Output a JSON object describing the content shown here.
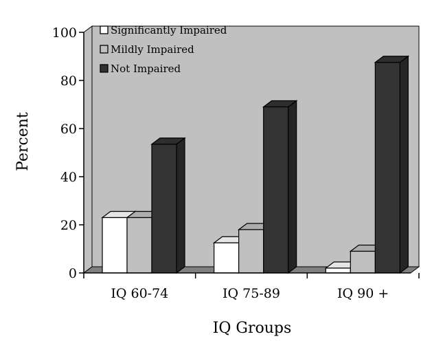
{
  "chart_data": {
    "type": "bar",
    "title": "",
    "xlabel": "IQ Groups",
    "ylabel": "Percent",
    "ylim": [
      0,
      100
    ],
    "yticks": [
      0,
      20,
      40,
      60,
      80,
      100
    ],
    "grid": false,
    "legend_position": "top-left",
    "categories": [
      "IQ 60-74",
      "IQ 75-89",
      "IQ 90 +"
    ],
    "series": [
      {
        "name": "Significantly Impaired",
        "color": "#ffffff",
        "values": [
          23,
          12.5,
          2
        ]
      },
      {
        "name": "Mildly Impaired",
        "color": "#c0c0c0",
        "values": [
          23,
          18,
          9
        ]
      },
      {
        "name": "Not Impaired",
        "color": "#333333",
        "values": [
          53.5,
          69,
          87.5
        ]
      }
    ],
    "plot_background": "#c0c0c0",
    "floor_color": "#808080"
  }
}
